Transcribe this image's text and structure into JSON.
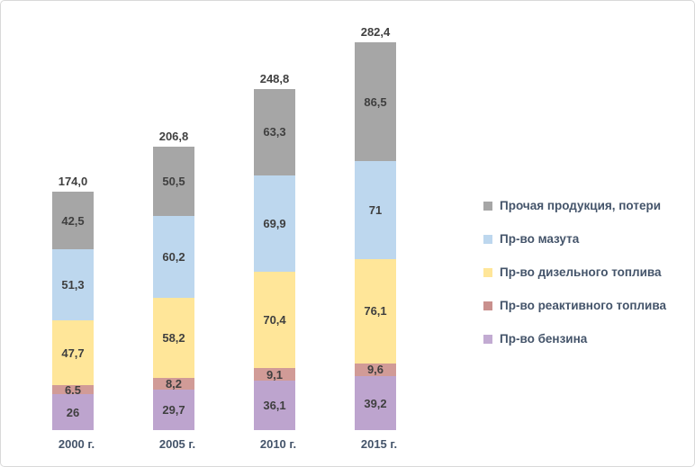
{
  "frame": {
    "background": "#FFFFFF",
    "border_color": "#D9D9D9"
  },
  "chart_data": {
    "type": "bar",
    "stacked": true,
    "title": "",
    "xlabel": "",
    "ylabel": "",
    "grid": false,
    "axes_visible": false,
    "legend_position": "right",
    "ylim": [
      0,
      290
    ],
    "categories": [
      "2000 г.",
      "2005 г.",
      "2010 г.",
      "2015 г."
    ],
    "series": [
      {
        "name": "Пр-во бензина",
        "color": "#BDA4CE",
        "values": [
          26,
          29.7,
          36.1,
          39.2
        ],
        "value_labels": [
          "26",
          "29,7",
          "36,1",
          "39,2"
        ]
      },
      {
        "name": "Пр-во реактивного топлива",
        "color": "#D19B97",
        "values": [
          6.5,
          8.2,
          9.1,
          9.6
        ],
        "value_labels": [
          "6,5",
          "8,2",
          "9,1",
          "9,6"
        ]
      },
      {
        "name": "Пр-во дизельного топлива",
        "color": "#FFE699",
        "values": [
          47.7,
          58.2,
          70.4,
          76.1
        ],
        "value_labels": [
          "47,7",
          "58,2",
          "70,4",
          "76,1"
        ]
      },
      {
        "name": "Пр-во мазута",
        "color": "#BDD7EE",
        "values": [
          51.3,
          60.2,
          69.9,
          71
        ],
        "value_labels": [
          "51,3",
          "60,2",
          "69,9",
          "71"
        ]
      },
      {
        "name": "Прочая продукция, потери",
        "color": "#A6A6A6",
        "values": [
          42.5,
          50.5,
          63.3,
          86.5
        ],
        "value_labels": [
          "42,5",
          "50,5",
          "63,3",
          "86,5"
        ]
      }
    ],
    "totals": [
      174.0,
      206.8,
      248.8,
      282.4
    ],
    "total_labels": [
      "174,0",
      "206,8",
      "248,8",
      "282,4"
    ]
  },
  "legend": {
    "items": [
      {
        "label": "Прочая продукция, потери",
        "color": "#A6A6A6"
      },
      {
        "label": "Пр-во мазута",
        "color": "#BDD7EE"
      },
      {
        "label": "Пр-во дизельного топлива",
        "color": "#FFE699"
      },
      {
        "label": "Пр-во реактивного топлива",
        "color": "#C9908D"
      },
      {
        "label": "Пр-во бензина",
        "color": "#C2ABD2"
      }
    ]
  },
  "colors": {
    "segment_label": "#3F3F3F",
    "total_label": "#404040",
    "axis_label": "#44546A"
  }
}
